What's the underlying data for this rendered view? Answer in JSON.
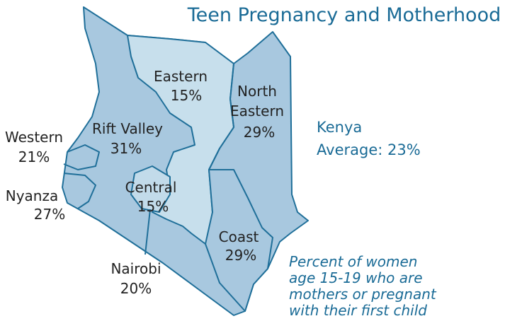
{
  "title": "Teen Pregnancy and Motherhood",
  "regions": [
    {
      "name": "Eastern",
      "value": "15%"
    },
    {
      "name": "North Eastern",
      "value": "29%"
    },
    {
      "name": "Rift Valley",
      "value": "31%"
    },
    {
      "name": "Western",
      "value": "21%"
    },
    {
      "name": "Nyanza",
      "value": "27%"
    },
    {
      "name": "Central",
      "value": "15%"
    },
    {
      "name": "Nairobi",
      "value": "20%"
    },
    {
      "name": "Coast",
      "value": "29%"
    }
  ],
  "national": {
    "name": "Kenya",
    "average": "Average: 23%"
  },
  "note": [
    "Percent of women",
    "age 15-19 who are",
    "mothers or pregnant",
    "with their first child"
  ]
}
